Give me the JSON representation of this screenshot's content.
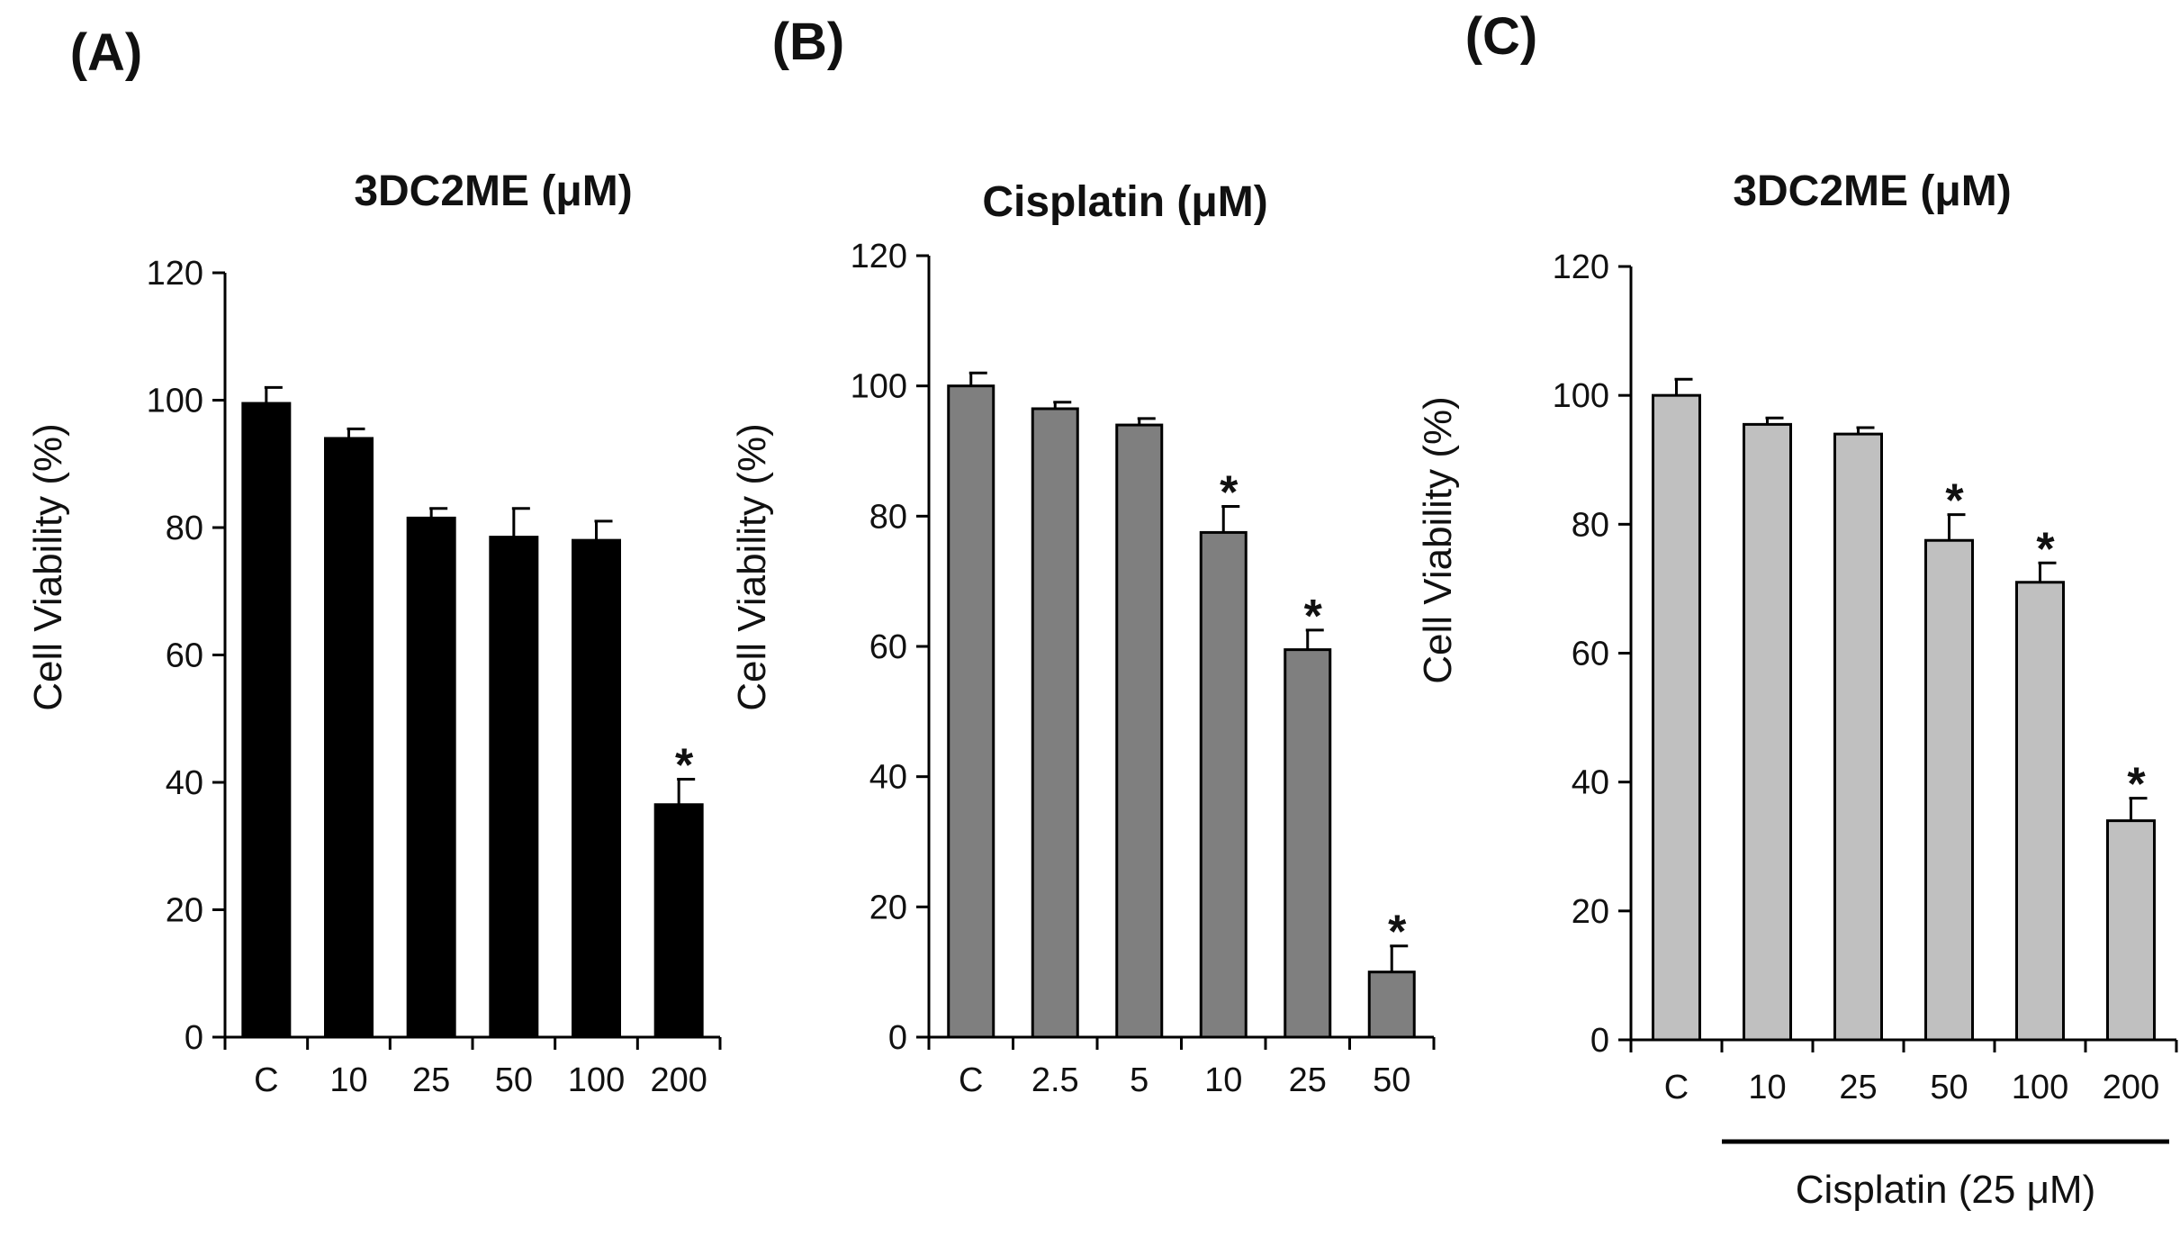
{
  "chart_data": [
    {
      "panel": "(A)",
      "type": "bar",
      "title": "3DC2ME (μM)",
      "xlabel": "",
      "ylabel": "Cell Viability (%)",
      "ylim": [
        0,
        120
      ],
      "yticks": [
        0,
        20,
        40,
        60,
        80,
        100,
        120
      ],
      "categories": [
        "C",
        "10",
        "25",
        "50",
        "100",
        "200"
      ],
      "values": [
        99.5,
        94,
        81.5,
        78.5,
        78,
        36.5
      ],
      "errors": [
        2.5,
        1.5,
        1.5,
        4.5,
        3,
        4
      ],
      "significance": [
        "",
        "",
        "",
        "",
        "",
        "*"
      ],
      "bar_color": "#000000",
      "grid": false
    },
    {
      "panel": "(B)",
      "type": "bar",
      "title": "Cisplatin (μM)",
      "xlabel": "",
      "ylabel": "Cell Viability (%)",
      "ylim": [
        0,
        120
      ],
      "yticks": [
        0,
        20,
        40,
        60,
        80,
        100,
        120
      ],
      "categories": [
        "C",
        "2.5",
        "5",
        "10",
        "25",
        "50"
      ],
      "values": [
        100,
        96.5,
        94,
        77.5,
        59.5,
        10
      ],
      "errors": [
        2,
        1,
        1,
        4,
        3,
        4
      ],
      "significance": [
        "",
        "",
        "",
        "*",
        "*",
        "*"
      ],
      "bar_color": "#7f7f7f",
      "grid": false
    },
    {
      "panel": "(C)",
      "type": "bar",
      "title": "3DC2ME (μM)",
      "xlabel": "",
      "ylabel": "Cell Viability (%)",
      "ylim": [
        0,
        120
      ],
      "yticks": [
        0,
        20,
        40,
        60,
        80,
        100,
        120
      ],
      "categories": [
        "C",
        "10",
        "25",
        "50",
        "100",
        "200"
      ],
      "values": [
        100,
        95.5,
        94,
        77.5,
        71,
        34
      ],
      "errors": [
        2.5,
        1,
        1,
        4,
        3,
        3.5
      ],
      "significance": [
        "",
        "",
        "",
        "*",
        "*",
        "*"
      ],
      "bar_color": "#c0c0c0",
      "grid": false,
      "annotation": "Cisplatin (25 μM)"
    }
  ]
}
